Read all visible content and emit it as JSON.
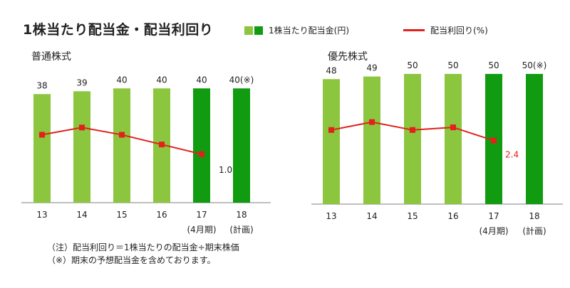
{
  "title": "1株当たり配当金・配当利回り",
  "legend": {
    "dividend_label": "1株当たり配当金(円)",
    "yield_label": "配当利回り(%)"
  },
  "colors": {
    "bar_light": "#8cc63f",
    "bar_dark": "#109b10",
    "line": "#e3201b",
    "axis": "#7f7f7f"
  },
  "notes": [
    "（注）配当利回り＝1株当たりの配当金÷期末株価",
    "（※）期末の予想配当金を含めております。"
  ],
  "chart_data": [
    {
      "type": "bar",
      "title": "普通株式",
      "categories": [
        "13",
        "14",
        "15",
        "16",
        "17",
        "18"
      ],
      "category_sublabels": [
        "",
        "",
        "",
        "",
        "(4月期)",
        "(計画)"
      ],
      "series": [
        {
          "name": "1株当たり配当金(円)",
          "values": [
            38,
            39,
            40,
            40,
            40,
            40
          ],
          "value_labels": [
            "38",
            "39",
            "40",
            "40",
            "40",
            "40(※)"
          ],
          "highlight": [
            false,
            false,
            false,
            false,
            true,
            true
          ]
        },
        {
          "name": "配当利回り(%)",
          "type": "line",
          "values": [
            1.4,
            1.55,
            1.4,
            1.2,
            1.0,
            null
          ],
          "value_labels": [
            "",
            "",
            "",
            "",
            "1.0",
            ""
          ]
        }
      ],
      "ylim": [
        0,
        56
      ],
      "y2lim": [
        0,
        3.3
      ]
    },
    {
      "type": "bar",
      "title": "優先株式",
      "categories": [
        "13",
        "14",
        "15",
        "16",
        "17",
        "18"
      ],
      "category_sublabels": [
        "",
        "",
        "",
        "",
        "(4月期)",
        "(計画)"
      ],
      "series": [
        {
          "name": "1株当たり配当金(円)",
          "values": [
            48,
            49,
            50,
            50,
            50,
            50
          ],
          "value_labels": [
            "48",
            "49",
            "50",
            "50",
            "50",
            "50(※)"
          ],
          "highlight": [
            false,
            false,
            false,
            false,
            true,
            true
          ]
        },
        {
          "name": "配当利回り(%)",
          "type": "line",
          "values": [
            2.8,
            3.1,
            2.8,
            2.9,
            2.4,
            null
          ],
          "value_labels": [
            "",
            "",
            "",
            "",
            "2.4",
            ""
          ]
        }
      ],
      "ylim": [
        0,
        62
      ],
      "y2lim": [
        0,
        6.1
      ]
    }
  ]
}
